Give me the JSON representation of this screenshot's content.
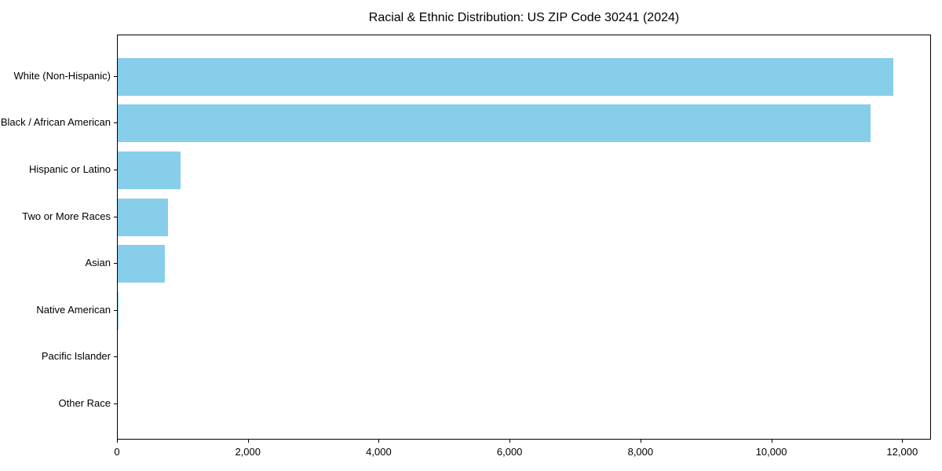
{
  "page": {
    "title": "Racial & Ethnic Distribution: US ZIP Code 30241 (2024)"
  },
  "chart_data": {
    "type": "bar",
    "orientation": "horizontal",
    "title": "Racial & Ethnic Distribution: US ZIP Code 30241 (2024)",
    "categories": [
      "White (Non-Hispanic)",
      "Black / African American",
      "Hispanic or Latino",
      "Two or More Races",
      "Asian",
      "Native American",
      "Pacific Islander",
      "Other Race"
    ],
    "values": [
      11850,
      11500,
      960,
      770,
      715,
      15,
      0,
      0
    ],
    "xlabel": "",
    "ylabel": "",
    "xlim": [
      0,
      12440
    ],
    "x_ticks": [
      0,
      2000,
      4000,
      6000,
      8000,
      10000,
      12000
    ],
    "x_tick_labels": [
      "0",
      "2,000",
      "4,000",
      "6,000",
      "8,000",
      "10,000",
      "12,000"
    ],
    "grid": false,
    "legend": null,
    "bar_color": "#87CEEB",
    "axis_color": "#000000",
    "text_color": "#000000",
    "background_color": "#FFFFFF"
  }
}
